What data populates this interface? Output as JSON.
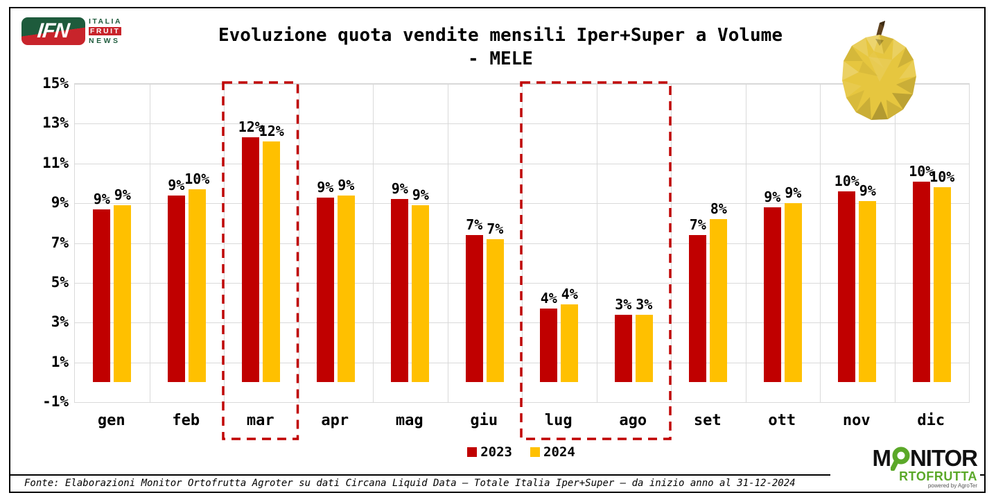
{
  "header": {
    "ifn_logo": {
      "abbr": "IFN",
      "line1": "ITALIA",
      "line2": "FRUIT",
      "line3": "NEWS"
    },
    "title_line1": "Evoluzione quota vendite mensili Iper+Super a Volume",
    "title_line2": "- MELE"
  },
  "chart_data": {
    "type": "bar",
    "title": "Evoluzione quota vendite mensili Iper+Super a Volume - MELE",
    "categories": [
      "gen",
      "feb",
      "mar",
      "apr",
      "mag",
      "giu",
      "lug",
      "ago",
      "set",
      "ott",
      "nov",
      "dic"
    ],
    "series": [
      {
        "name": "2023",
        "color": "#C00000",
        "values": [
          8.7,
          9.4,
          12.3,
          9.3,
          9.2,
          7.4,
          3.7,
          3.4,
          7.4,
          8.8,
          9.6,
          10.1
        ],
        "labels": [
          "9%",
          "9%",
          "12%",
          "9%",
          "9%",
          "7%",
          "4%",
          "3%",
          "7%",
          "9%",
          "10%",
          "10%"
        ]
      },
      {
        "name": "2024",
        "color": "#FFC000",
        "values": [
          8.9,
          9.7,
          12.1,
          9.4,
          8.9,
          7.2,
          3.9,
          3.4,
          8.2,
          9.0,
          9.1,
          9.8
        ],
        "labels": [
          "9%",
          "10%",
          "12%",
          "9%",
          "9%",
          "7%",
          "4%",
          "3%",
          "8%",
          "9%",
          "9%",
          "10%"
        ]
      }
    ],
    "y_ticks": [
      "15%",
      "13%",
      "11%",
      "9%",
      "7%",
      "5%",
      "3%",
      "1%",
      "-1%"
    ],
    "y_min": -1,
    "y_max": 15,
    "grid": true,
    "legend_position": "bottom",
    "highlight_boxes": [
      {
        "from": "mar",
        "to": "mar"
      },
      {
        "from": "lug",
        "to": "ago"
      }
    ]
  },
  "legend": {
    "items": [
      {
        "label": "2023",
        "color": "#C00000"
      },
      {
        "label": "2024",
        "color": "#FFC000"
      }
    ]
  },
  "footer": {
    "source_text": "Fonte: Elaborazioni Monitor Ortofrutta Agroter su dati Circana Liquid Data – Totale Italia Iper+Super –  da inizio anno al 31-12-2024"
  },
  "monitor_logo": {
    "m": "M",
    "nitor": "NITOR",
    "line2": "RTOFRUTTA",
    "powered": "powered by AgroTer"
  },
  "colors": {
    "grid": "#D9D9D9",
    "highlight": "#C00000",
    "ifn_green": "#1E5B3C",
    "ifn_red": "#C8242B",
    "monitor_green": "#5BA829"
  }
}
